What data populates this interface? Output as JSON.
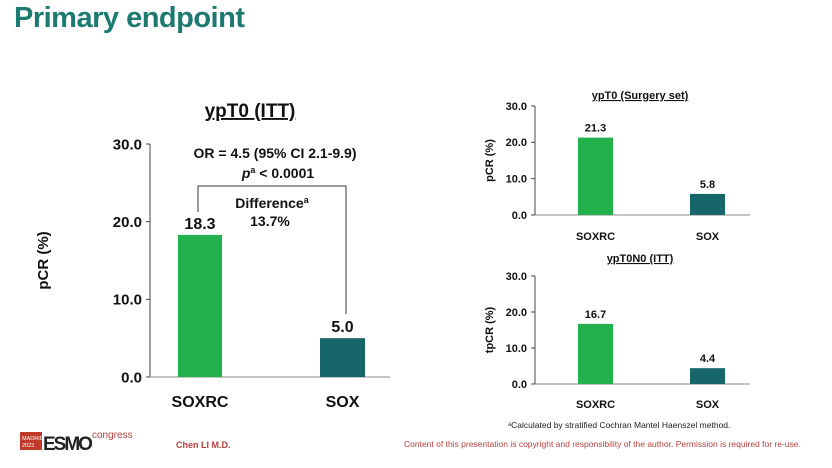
{
  "slide": {
    "title": "Primary endpoint",
    "footnote": "ᵃCalculated by stratified Cochran Mantel Haenszel method.",
    "copyright": "Content of this presentation is copyright and responsibility of the author. Permission is required for re-use.",
    "author": "Chen LI M.D.",
    "logo_text": "MADRID 2023 ESMO congress"
  },
  "colors": {
    "soxrc": "#22b14c",
    "sox": "#17666a",
    "title": "#1d7a70"
  },
  "chart_data": [
    {
      "type": "bar",
      "title": "ypT0 (ITT)",
      "ylabel": "pCR (%)",
      "categories": [
        "SOXRC",
        "SOX"
      ],
      "values": [
        18.3,
        5.0
      ],
      "data_labels": [
        "18.3",
        "5.0"
      ],
      "yticks": [
        "0.0",
        "10.0",
        "20.0",
        "30.0"
      ],
      "ylim": [
        0,
        30
      ],
      "annotation": {
        "or": "OR = 4.5 (95% CI 2.1-9.9)",
        "p_prefix": "p",
        "p_sup": "a",
        "p_value": " < 0.0001",
        "difference_label": "Difference",
        "difference_sup": "a",
        "difference_value": "13.7%"
      }
    },
    {
      "type": "bar",
      "title": "ypT0 (Surgery set)",
      "ylabel": "pCR (%)",
      "categories": [
        "SOXRC",
        "SOX"
      ],
      "values": [
        21.3,
        5.8
      ],
      "data_labels": [
        "21.3",
        "5.8"
      ],
      "yticks": [
        "0.0",
        "10.0",
        "20.0",
        "30.0"
      ],
      "ylim": [
        0,
        30
      ]
    },
    {
      "type": "bar",
      "title": "ypT0N0 (ITT)",
      "ylabel": "tpCR (%)",
      "categories": [
        "SOXRC",
        "SOX"
      ],
      "values": [
        16.7,
        4.4
      ],
      "data_labels": [
        "16.7",
        "4.4"
      ],
      "yticks": [
        "0.0",
        "10.0",
        "20.0",
        "30.0"
      ],
      "ylim": [
        0,
        30
      ]
    }
  ]
}
